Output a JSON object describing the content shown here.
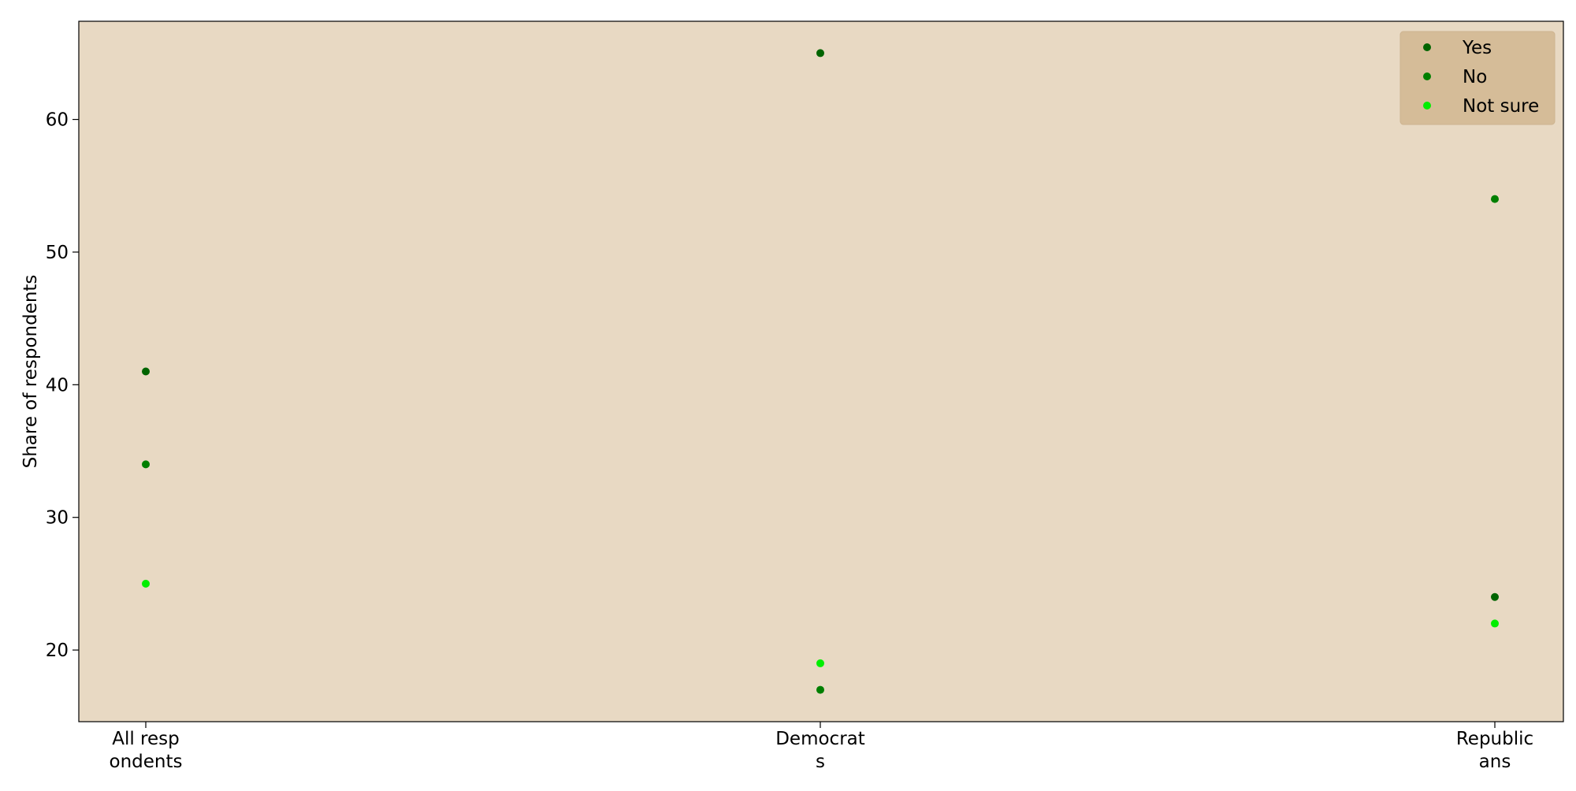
{
  "chart_data": {
    "type": "scatter",
    "categories": [
      "All resp\nondents",
      "Democrat\ns",
      "Republic\nans"
    ],
    "series": [
      {
        "name": "Yes",
        "values": [
          41,
          65,
          24
        ],
        "color": "#006400"
      },
      {
        "name": "No",
        "values": [
          34,
          17,
          54
        ],
        "color": "#007f00"
      },
      {
        "name": "Not sure",
        "values": [
          25,
          19,
          22
        ],
        "color": "#00ee00"
      }
    ],
    "xlabel": "",
    "ylabel": "Share of respondents",
    "ylim": [
      14.6,
      67.4
    ],
    "yticks": [
      20,
      30,
      40,
      50,
      60
    ],
    "grid": false,
    "legend_position": "top-right",
    "colors": {
      "plot_background": "#e8d9c3",
      "legend_background": "#d5bc98",
      "axis": "#000000"
    }
  }
}
